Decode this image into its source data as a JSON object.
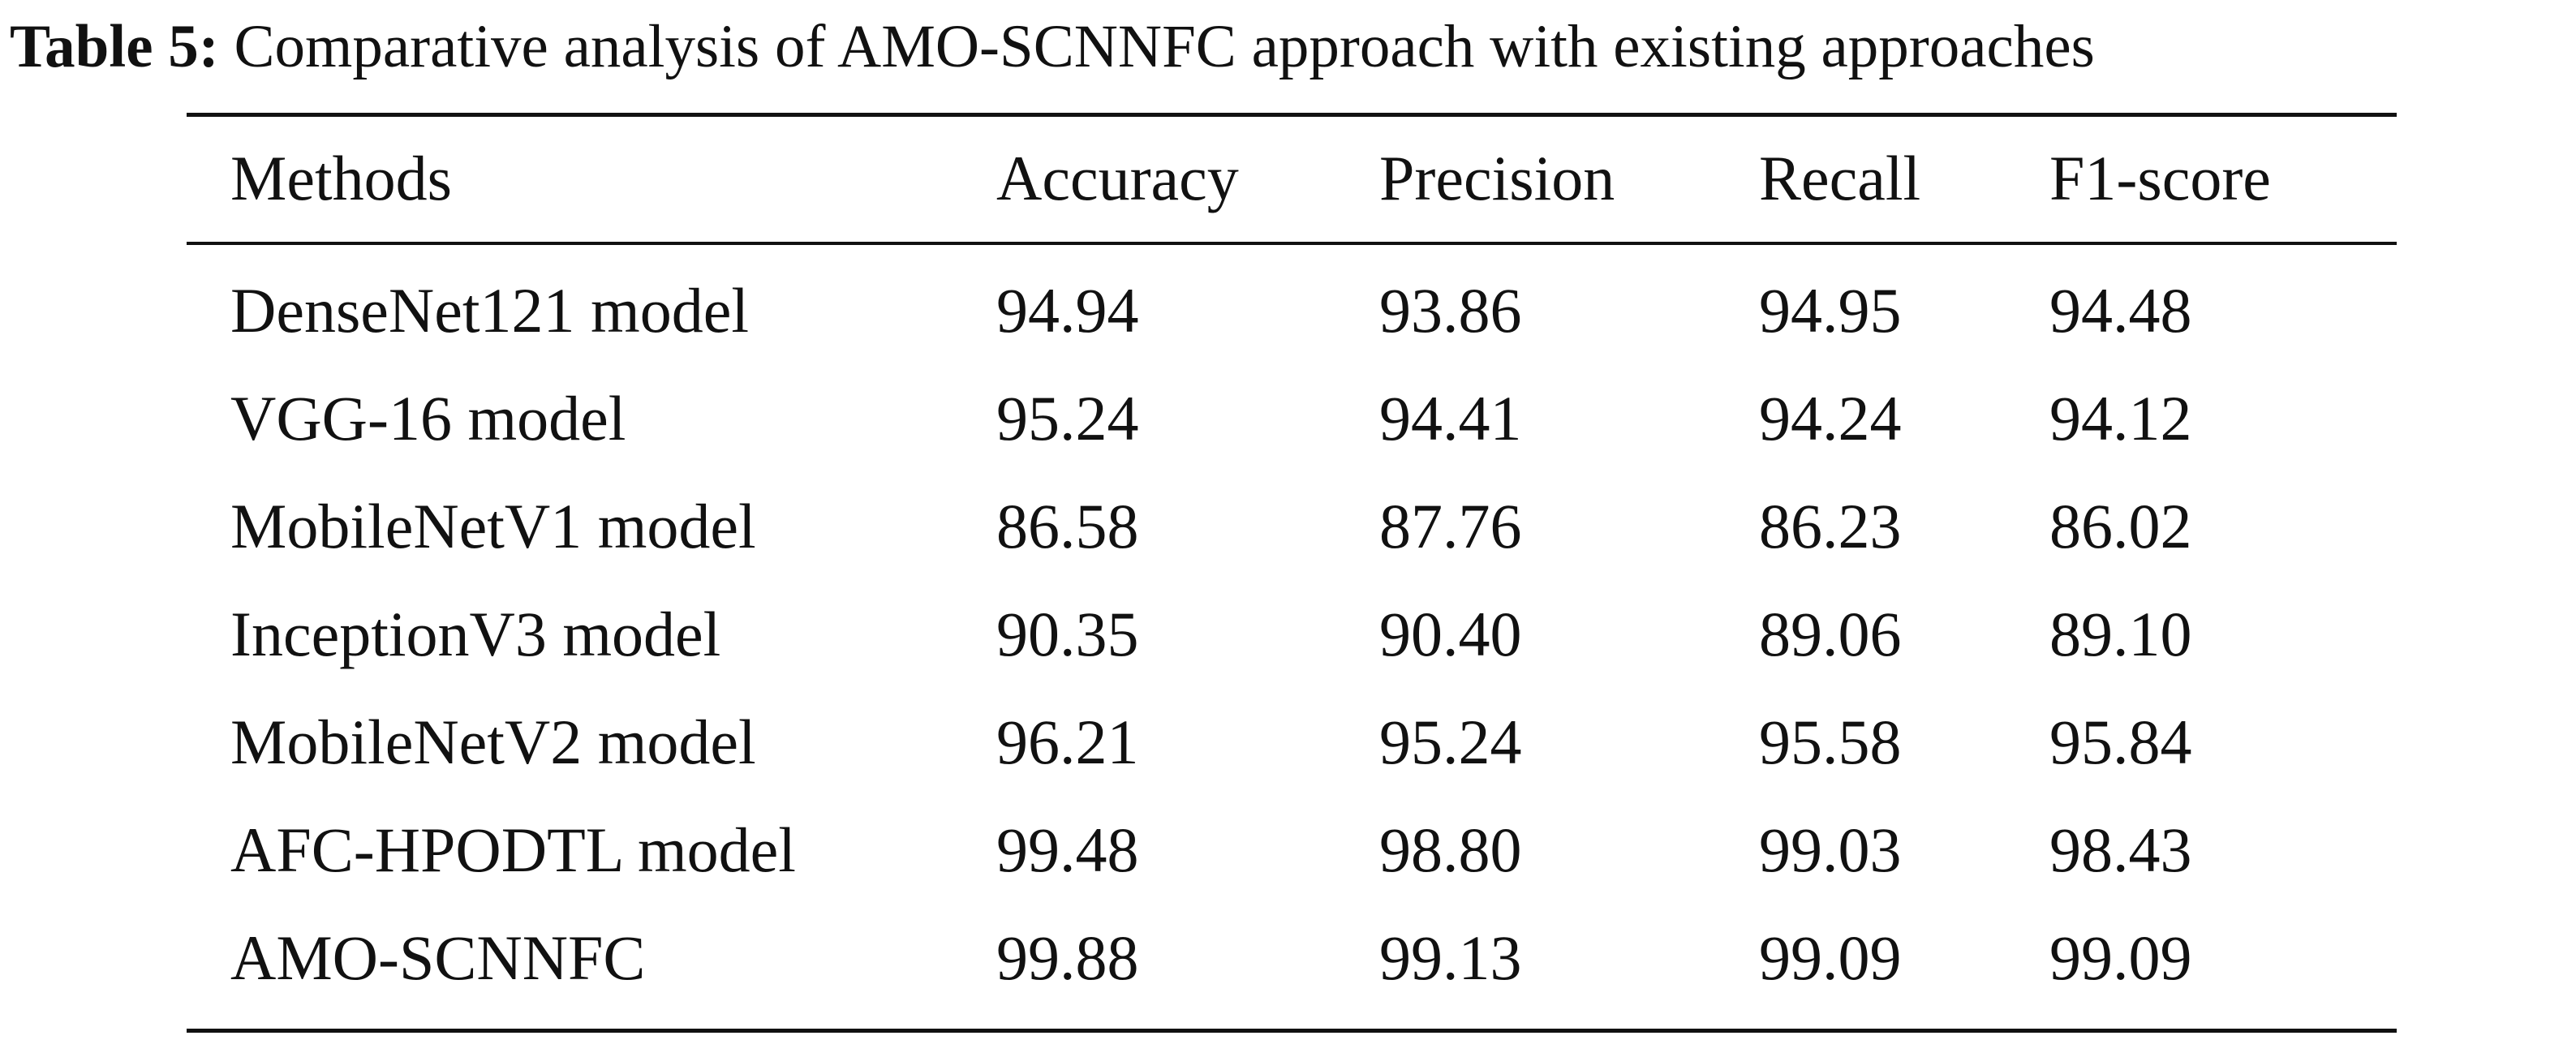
{
  "caption": {
    "label": "Table 5:",
    "text": "Comparative analysis of AMO-SCNNFC approach with existing approaches"
  },
  "table": {
    "headers": [
      "Methods",
      "Accuracy",
      "Precision",
      "Recall",
      "F1-score"
    ],
    "rows": [
      [
        "DenseNet121 model",
        "94.94",
        "93.86",
        "94.95",
        "94.48"
      ],
      [
        "VGG-16 model",
        "95.24",
        "94.41",
        "94.24",
        "94.12"
      ],
      [
        "MobileNetV1 model",
        "86.58",
        "87.76",
        "86.23",
        "86.02"
      ],
      [
        "InceptionV3 model",
        "90.35",
        "90.40",
        "89.06",
        "89.10"
      ],
      [
        "MobileNetV2 model",
        "96.21",
        "95.24",
        "95.58",
        "95.84"
      ],
      [
        "AFC-HPODTL model",
        "99.48",
        "98.80",
        "99.03",
        "98.43"
      ],
      [
        "AMO-SCNNFC",
        "99.88",
        "99.13",
        "99.09",
        "99.09"
      ]
    ]
  }
}
